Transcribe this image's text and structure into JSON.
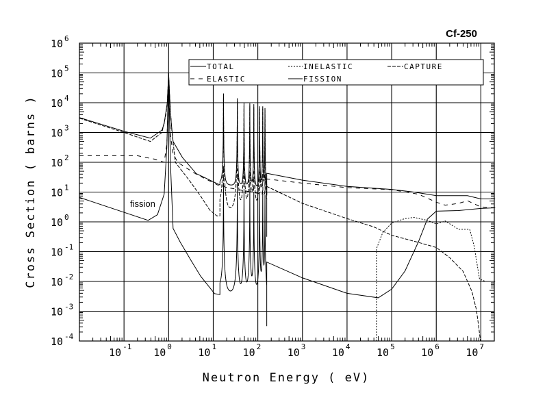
{
  "chart_data": {
    "type": "line",
    "title": "Cf-250",
    "xlabel": "Neutron Energy ( eV)",
    "ylabel": "Cross Section ( barns )",
    "xscale": "log",
    "yscale": "log",
    "xlim": [
      0.01,
      20000000
    ],
    "ylim": [
      0.0001,
      1000000
    ],
    "grid": true,
    "tick_base": "10",
    "x_tick_exponents": [
      "-1",
      "0",
      "1",
      "2",
      "3",
      "4",
      "5",
      "6",
      "7"
    ],
    "y_tick_exponents": [
      "-4",
      "-3",
      "-2",
      "-1",
      "0",
      "1",
      "2",
      "3",
      "4",
      "5",
      "6"
    ],
    "legend_placement": "top",
    "legend": [
      "TOTAL",
      "INELASTIC",
      "CAPTURE",
      "ELASTIC",
      "FISSION"
    ],
    "annotation": "fission",
    "resonance_log10_energies": [
      1.23,
      1.54,
      1.69,
      1.82,
      1.91,
      2.04,
      2.11,
      2.16
    ],
    "series": [
      {
        "name": "TOTAL",
        "style": "solid",
        "low": [
          [
            -2,
            3.5
          ],
          [
            -1,
            3.04
          ],
          [
            -0.41,
            2.81
          ],
          [
            -0.15,
            3.08
          ],
          [
            -0.1,
            3.3
          ],
          [
            -0.03,
            4.0
          ],
          [
            0,
            5
          ],
          [
            0.03,
            4.0
          ],
          [
            0.06,
            3.3
          ],
          [
            0.1,
            2.7
          ],
          [
            0.31,
            2.16
          ],
          [
            0.62,
            1.62
          ],
          [
            1.15,
            1.24
          ]
        ],
        "resolved_base_end": 0.95,
        "resonance_peaks": [
          4.31,
          4.15,
          4.0,
          3.98,
          3.95,
          3.88,
          3.88,
          3.82
        ],
        "high": [
          [
            2.2,
            1.63
          ],
          [
            3,
            1.4
          ],
          [
            4,
            1.19
          ],
          [
            5,
            1.09
          ],
          [
            5.5,
            1.0
          ],
          [
            6,
            0.88
          ],
          [
            6.7,
            0.88
          ],
          [
            7,
            0.77
          ],
          [
            7.32,
            0.77
          ]
        ]
      },
      {
        "name": "ELASTIC",
        "style": "dash",
        "low": [
          [
            -2,
            2.22
          ],
          [
            -0.7,
            2.22
          ],
          [
            -0.3,
            2.1
          ],
          [
            -0.1,
            2.0
          ],
          [
            -0.04,
            2.6
          ],
          [
            0,
            4.5
          ],
          [
            0.04,
            2.9
          ],
          [
            0.1,
            2.3
          ],
          [
            0.2,
            2.0
          ],
          [
            0.62,
            1.6
          ],
          [
            1.15,
            1.2
          ]
        ],
        "resolved_base_end": 0.9,
        "resonance_peaks": [
          1.8,
          1.7,
          1.7,
          1.6,
          1.6,
          1.6,
          1.5,
          1.5
        ],
        "high": [
          [
            2.2,
            1.44
          ],
          [
            3,
            1.3
          ],
          [
            4,
            1.15
          ],
          [
            5,
            1.08
          ],
          [
            5.6,
            0.93
          ],
          [
            6,
            0.66
          ],
          [
            6.2,
            0.56
          ],
          [
            6.5,
            0.62
          ],
          [
            6.7,
            0.71
          ],
          [
            7,
            0.5
          ],
          [
            7.32,
            0.47
          ]
        ]
      },
      {
        "name": "INELASTIC",
        "style": "dot",
        "low": [],
        "high": [
          [
            4.66,
            -4
          ],
          [
            4.66,
            -0.9
          ],
          [
            4.8,
            -0.36
          ],
          [
            5,
            -0.04
          ],
          [
            5.3,
            0.11
          ],
          [
            5.5,
            0.15
          ],
          [
            5.8,
            0.05
          ],
          [
            6,
            -0.07
          ],
          [
            6.2,
            0.03
          ],
          [
            6.5,
            -0.25
          ],
          [
            6.75,
            -0.25
          ],
          [
            6.85,
            -0.82
          ],
          [
            6.97,
            -1.92
          ],
          [
            7.1,
            -2
          ],
          [
            7.32,
            -2
          ]
        ]
      },
      {
        "name": "CAPTURE",
        "style": "longdash",
        "low": [
          [
            -2,
            3.48
          ],
          [
            -1,
            3.0
          ],
          [
            -0.41,
            2.7
          ],
          [
            -0.15,
            3.0
          ],
          [
            -0.06,
            3.6
          ],
          [
            -0.03,
            4.0
          ],
          [
            0,
            4.95
          ],
          [
            0.03,
            4.0
          ],
          [
            0.07,
            3.1
          ],
          [
            0.15,
            2.0
          ],
          [
            0.46,
            1.4
          ],
          [
            0.72,
            0.86
          ],
          [
            0.92,
            0.4
          ],
          [
            1.08,
            0.2
          ],
          [
            1.15,
            0.2
          ]
        ],
        "resolved_base_end": -0.5,
        "resonance_peaks": [
          4.2,
          4.05,
          3.9,
          3.9,
          3.85,
          3.8,
          3.8,
          3.75
        ],
        "high": [
          [
            2.2,
            1.19
          ],
          [
            3,
            0.62
          ],
          [
            4,
            0.11
          ],
          [
            4.6,
            -0.17
          ],
          [
            5,
            -0.45
          ],
          [
            5.6,
            -0.69
          ],
          [
            6,
            -0.86
          ],
          [
            6.3,
            -1.2
          ],
          [
            6.6,
            -1.66
          ],
          [
            6.8,
            -2.34
          ],
          [
            6.9,
            -2.95
          ],
          [
            6.95,
            -3.5
          ],
          [
            6.99,
            -4
          ]
        ]
      },
      {
        "name": "FISSION",
        "style": "solid",
        "low": [
          [
            -2,
            0.82
          ],
          [
            -1,
            0.32
          ],
          [
            -0.46,
            0.05
          ],
          [
            -0.25,
            0.24
          ],
          [
            -0.1,
            0.93
          ],
          [
            -0.04,
            2.5
          ],
          [
            0,
            5
          ],
          [
            0.04,
            2.0
          ],
          [
            0.1,
            -0.22
          ],
          [
            0.26,
            -0.68
          ],
          [
            0.5,
            -1.29
          ],
          [
            0.72,
            -1.83
          ],
          [
            1.03,
            -2.41
          ],
          [
            1.15,
            -2.44
          ]
        ],
        "resolved_base_end": -3.5,
        "resonance_peaks": [
          1.3,
          1.2,
          1.1,
          1.1,
          1.0,
          1.0,
          1.0,
          0.9
        ],
        "high": [
          [
            2.2,
            -1.35
          ],
          [
            3,
            -1.88
          ],
          [
            4,
            -2.4
          ],
          [
            4.7,
            -2.55
          ],
          [
            5,
            -2.26
          ],
          [
            5.3,
            -1.65
          ],
          [
            5.6,
            -0.67
          ],
          [
            5.8,
            0.09
          ],
          [
            6,
            0.36
          ],
          [
            6.5,
            0.38
          ],
          [
            7,
            0.45
          ],
          [
            7.32,
            0.47
          ]
        ]
      }
    ]
  }
}
